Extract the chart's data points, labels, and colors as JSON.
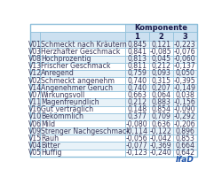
{
  "title": "Komponente",
  "columns": [
    "1",
    "2",
    "3"
  ],
  "rows": [
    [
      "V01",
      "Schmeckt nach Kräutern",
      "0,845",
      "0,121",
      "-0,223"
    ],
    [
      "V03",
      "Herzhafter Geschmack",
      "0,841",
      "-0,085",
      "-0,076"
    ],
    [
      "V08",
      "Hochprozentig",
      "0,813",
      "0,045",
      "-0,060"
    ],
    [
      "V13",
      "Frischer Geschmack",
      "0,811",
      "0,212",
      "-0,137"
    ],
    [
      "V12",
      "Anregend",
      "0,759",
      "0,093",
      "0,050"
    ],
    [
      "V02",
      "Schmeckt angenehm",
      "0,740",
      "0,315",
      "-0,395"
    ],
    [
      "V14",
      "Angenehmer Geruch",
      "0,740",
      "0,207",
      "-0,149"
    ],
    [
      "V07",
      "Wirkungsvoll",
      "0,663",
      "0,064",
      "0,038"
    ],
    [
      "V11",
      "Magenfreundlich",
      "0,212",
      "0,883",
      "-0,156"
    ],
    [
      "V16",
      "Gut verträglich",
      "0,148",
      "0,854",
      "-0,090"
    ],
    [
      "V10",
      "Bekömmlich",
      "0,377",
      "0,709",
      "-0,292"
    ],
    [
      "V06",
      "Mild",
      "-0,080",
      "0,636",
      "-0,206"
    ],
    [
      "V09",
      "Strenger Nachgeschmack",
      "-0,114",
      "-0,122",
      "0,896"
    ],
    [
      "V15",
      "Rauh",
      "-0,056",
      "-0,042",
      "0,853"
    ],
    [
      "V04",
      "Bitter",
      "-0,077",
      "-0,369",
      "0,664"
    ],
    [
      "V05",
      "Huffig",
      "-0,123",
      "-0,240",
      "0,642"
    ]
  ],
  "header_bg": "#cce0f0",
  "row_bg_even": "#e8f2f8",
  "row_bg_odd": "#ffffff",
  "border_color": "#8bbdd9",
  "text_color": "#3a3a5c",
  "header_text_color": "#1a1a4a",
  "font_size": 5.6,
  "header_font_size": 6.0,
  "watermark": "IfaD",
  "watermark_color": "#2255aa"
}
